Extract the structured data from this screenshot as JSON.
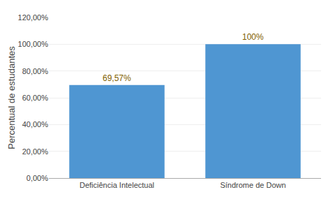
{
  "chart_data": {
    "type": "bar",
    "categories": [
      "Deficiência Intelectual",
      "Síndrome de Down"
    ],
    "values": [
      69.57,
      100.0
    ],
    "value_labels": [
      "69,57%",
      "100%"
    ],
    "data_labels": true,
    "color": "#4F96D2",
    "ylabel": "Percentual de estudantes",
    "ylim": [
      0,
      120
    ],
    "yticks": [
      {
        "value": 0,
        "label": "0,00%"
      },
      {
        "value": 20,
        "label": "20,00%"
      },
      {
        "value": 40,
        "label": "40,00%"
      },
      {
        "value": 60,
        "label": "60,00%"
      },
      {
        "value": 80,
        "label": "80,00%"
      },
      {
        "value": 100,
        "label": "100,00%"
      },
      {
        "value": 120,
        "label": "120,00%"
      }
    ],
    "grid": true
  }
}
